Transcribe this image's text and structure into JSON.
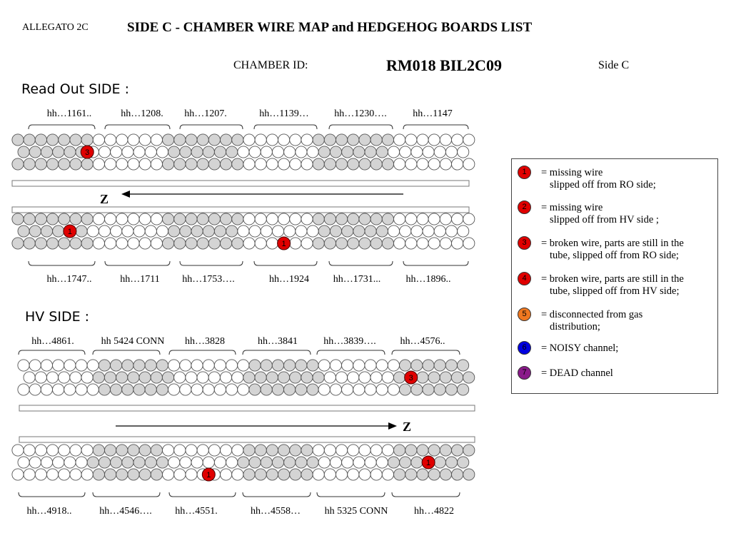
{
  "header": {
    "allegato": "ALLEGATO 2C",
    "title": "SIDE C - CHAMBER WIRE MAP and HEDGEHOG BOARDS LIST",
    "chamber_id_label": "CHAMBER ID:",
    "chamber_id": "RM018 BIL2C09",
    "side": "Side C"
  },
  "readout": {
    "title": "Read Out SIDE :",
    "axis_label": "Z",
    "top_boards": [
      "hh…1161..",
      "hh…1208.",
      "hh…1207.",
      "hh…1139…",
      "hh…1230….",
      "hh…1147"
    ],
    "bottom_boards": [
      "hh…1747..",
      "hh…1711",
      "hh…1753….",
      "hh…1924",
      "hh…1731...",
      "hh…1896.."
    ],
    "top_grey_groups": [
      0,
      2,
      4
    ],
    "bottom_grey_groups": [
      0,
      2,
      4
    ],
    "markers": [
      {
        "label": "3",
        "layer": "top",
        "row": 1,
        "col": 12,
        "color": "#e00000"
      },
      {
        "label": "1",
        "layer": "bottom",
        "row": 1,
        "col": 9,
        "color": "#e00000"
      },
      {
        "label": "1",
        "layer": "bottom",
        "row": 2,
        "col": 46,
        "color": "#e00000"
      }
    ]
  },
  "hv": {
    "title": "HV SIDE :",
    "axis_label": "Z",
    "top_boards": [
      "hh…4861.",
      "hh 5424 CONN",
      "hh…3828",
      "hh…3841",
      "hh…3839….",
      "hh…4576.."
    ],
    "bottom_boards": [
      "hh…4918..",
      "hh…4546….",
      "hh…4551.",
      "hh…4558…",
      "hh 5325 CONN",
      "hh…4822"
    ],
    "top_grey_groups": [
      1,
      3,
      5
    ],
    "bottom_grey_groups": [
      1,
      3,
      5
    ],
    "markers": [
      {
        "label": "3",
        "layer": "top",
        "row": 1,
        "col": 67,
        "color": "#e00000"
      },
      {
        "label": "1",
        "layer": "bottom",
        "row": 1,
        "col": 71,
        "color": "#e00000"
      },
      {
        "label": "1",
        "layer": "bottom",
        "row": 2,
        "col": 33,
        "color": "#e00000"
      }
    ]
  },
  "legend": [
    {
      "num": "1",
      "color": "#e00000",
      "line1": "= missing wire",
      "line2": "slipped off from RO side;"
    },
    {
      "num": "2",
      "color": "#e00000",
      "line1": "= missing wire",
      "line2": "slipped off from HV side ;"
    },
    {
      "num": "3",
      "color": "#e00000",
      "line1": "= broken wire, parts are still in the",
      "line2": "tube, slipped off from RO side;"
    },
    {
      "num": "4",
      "color": "#e00000",
      "line1": "= broken wire, parts are still in the",
      "line2": "tube,  slipped off from HV side;"
    },
    {
      "num": "5",
      "color": "#f07820",
      "line1": "= disconnected from gas",
      "line2": "distribution;"
    },
    {
      "num": "6",
      "color": "#0000e0",
      "line1": "= NOISY channel;",
      "line2": ""
    },
    {
      "num": "7",
      "color": "#8a1a8a",
      "line1": "= DEAD channel",
      "line2": ""
    }
  ]
}
